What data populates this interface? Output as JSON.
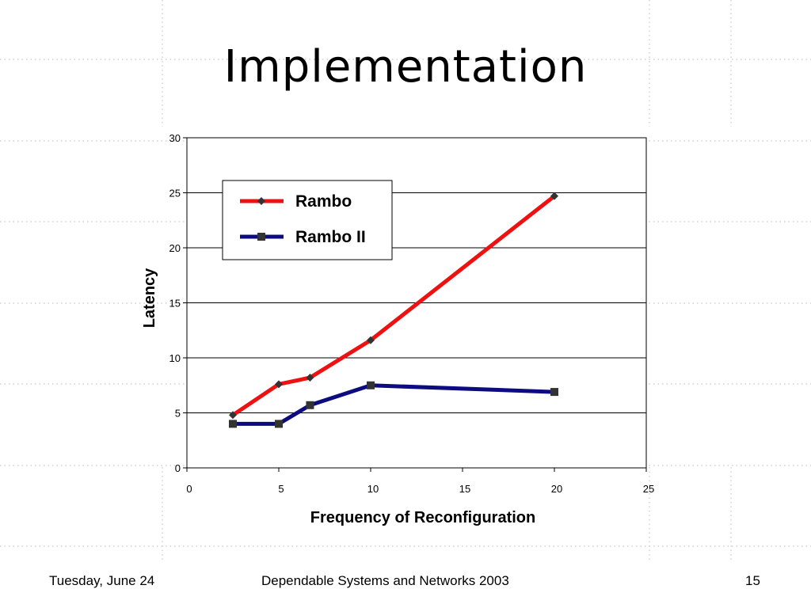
{
  "slide": {
    "title": "Implementation",
    "footer": {
      "date": "Tuesday, June 24",
      "center": "Dependable Systems and Networks 2003",
      "page_number": "15"
    }
  },
  "colors": {
    "rambo": "#ee1111",
    "rambo_ii": "#0c0c80",
    "grid": "#000000",
    "background_dots": "#c8c8c8"
  },
  "chart_data": {
    "type": "line",
    "title": "",
    "xlabel": "Frequency of Reconfiguration",
    "ylabel": "Latency",
    "xlim": [
      0,
      25
    ],
    "ylim": [
      0,
      30
    ],
    "x_ticks": [
      0,
      5,
      10,
      15,
      20,
      25
    ],
    "y_ticks": [
      0,
      5,
      10,
      15,
      20,
      25,
      30
    ],
    "grid": true,
    "legend": "top-left",
    "series": [
      {
        "name": "Rambo",
        "marker": "diamond",
        "points": [
          [
            2.5,
            4.8
          ],
          [
            5,
            7.6
          ],
          [
            6.7,
            8.2
          ],
          [
            10,
            11.6
          ],
          [
            20,
            24.7
          ]
        ]
      },
      {
        "name": "Rambo II",
        "marker": "square",
        "points": [
          [
            2.5,
            4.0
          ],
          [
            5,
            4.0
          ],
          [
            6.7,
            5.7
          ],
          [
            10,
            7.5
          ],
          [
            20,
            6.9
          ]
        ]
      }
    ]
  }
}
